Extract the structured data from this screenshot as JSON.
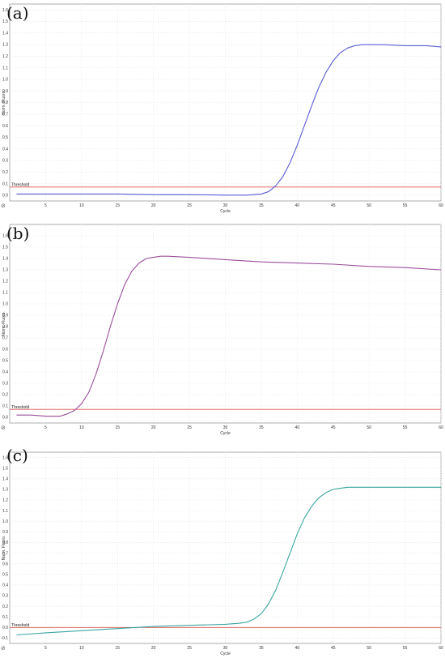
{
  "colors": {
    "threshold": "#d9534f",
    "grid": "#dfeedf",
    "frame": "#9a9a9a"
  },
  "chart_data": [
    {
      "type": "line",
      "panel_label": "(a)",
      "xlabel": "Cycle",
      "ylabel": "Norm. Fluoro.",
      "xlim": [
        0,
        60
      ],
      "ylim": [
        -0.05,
        1.65
      ],
      "xticks": [
        5,
        10,
        15,
        20,
        25,
        30,
        35,
        40,
        45,
        50,
        55,
        60
      ],
      "yticks": [
        0,
        0.1,
        0.2,
        0.3,
        0.4,
        0.5,
        0.6,
        0.7,
        0.8,
        0.9,
        1.0,
        1.1,
        1.2,
        1.3,
        1.4,
        1.5,
        1.6
      ],
      "threshold": {
        "label": "Threshold",
        "value": 0.07
      },
      "series": [
        {
          "color": "#5b5bd6",
          "x": [
            1,
            5,
            10,
            15,
            20,
            25,
            30,
            33,
            35,
            36,
            37,
            38,
            39,
            40,
            41,
            42,
            43,
            44,
            45,
            46,
            47,
            48,
            49,
            50,
            52,
            55,
            58,
            60
          ],
          "y": [
            0.01,
            0.01,
            0.01,
            0.01,
            0.005,
            0.005,
            0.0,
            0.0,
            0.01,
            0.03,
            0.08,
            0.16,
            0.28,
            0.43,
            0.6,
            0.77,
            0.93,
            1.06,
            1.16,
            1.23,
            1.27,
            1.29,
            1.3,
            1.3,
            1.3,
            1.29,
            1.29,
            1.28
          ]
        }
      ]
    },
    {
      "type": "line",
      "panel_label": "(b)",
      "xlabel": "Cycle",
      "ylabel": "Norm. Fluoro.",
      "xlim": [
        0,
        60
      ],
      "ylim": [
        -0.05,
        1.7
      ],
      "xticks": [
        5,
        10,
        15,
        20,
        25,
        30,
        35,
        40,
        45,
        50,
        55,
        60
      ],
      "yticks": [
        0,
        0.1,
        0.2,
        0.3,
        0.4,
        0.5,
        0.6,
        0.7,
        0.8,
        0.9,
        1.0,
        1.1,
        1.2,
        1.3,
        1.4,
        1.5,
        1.6
      ],
      "threshold": {
        "label": "Threshold",
        "value": 0.07
      },
      "series": [
        {
          "color": "#9b4f9b",
          "x": [
            1,
            3,
            5,
            7,
            8,
            9,
            10,
            11,
            12,
            13,
            14,
            15,
            16,
            17,
            18,
            19,
            20,
            21,
            22,
            25,
            30,
            35,
            40,
            45,
            50,
            55,
            60
          ],
          "y": [
            0.02,
            0.02,
            0.01,
            0.01,
            0.03,
            0.06,
            0.12,
            0.22,
            0.38,
            0.58,
            0.8,
            1.0,
            1.17,
            1.29,
            1.36,
            1.4,
            1.41,
            1.42,
            1.42,
            1.41,
            1.39,
            1.37,
            1.36,
            1.35,
            1.33,
            1.32,
            1.3
          ]
        }
      ]
    },
    {
      "type": "line",
      "panel_label": "(c)",
      "xlabel": "Cycle",
      "ylabel": "Norm. Fluoro.",
      "xlim": [
        0,
        60
      ],
      "ylim": [
        -0.15,
        1.65
      ],
      "xticks": [
        5,
        10,
        15,
        20,
        25,
        30,
        35,
        40,
        45,
        50,
        55,
        60
      ],
      "yticks": [
        -0.1,
        0,
        0.1,
        0.2,
        0.3,
        0.4,
        0.5,
        0.6,
        0.7,
        0.8,
        0.9,
        1.0,
        1.1,
        1.2,
        1.3,
        1.4,
        1.5,
        1.6
      ],
      "threshold": {
        "label": "Threshold",
        "value": 0.0
      },
      "series": [
        {
          "color": "#3aa5a0",
          "x": [
            1,
            5,
            10,
            15,
            20,
            25,
            30,
            32,
            33,
            34,
            35,
            36,
            37,
            38,
            39,
            40,
            41,
            42,
            43,
            44,
            45,
            46,
            47,
            48,
            50,
            55,
            60
          ],
          "y": [
            -0.07,
            -0.05,
            -0.03,
            -0.01,
            0.01,
            0.02,
            0.03,
            0.04,
            0.05,
            0.08,
            0.13,
            0.22,
            0.35,
            0.52,
            0.7,
            0.88,
            1.03,
            1.14,
            1.22,
            1.27,
            1.3,
            1.31,
            1.32,
            1.32,
            1.32,
            1.32,
            1.32
          ]
        }
      ]
    }
  ]
}
